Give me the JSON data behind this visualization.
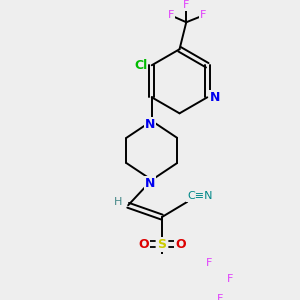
{
  "bg_color": "#eeeeee",
  "atom_colors": {
    "F": "#e040fb",
    "Cl": "#00bb00",
    "N": "#0000ee",
    "O": "#dd0000",
    "S": "#cccc00",
    "C": "#000000",
    "H": "#448888",
    "CN": "#008888"
  }
}
